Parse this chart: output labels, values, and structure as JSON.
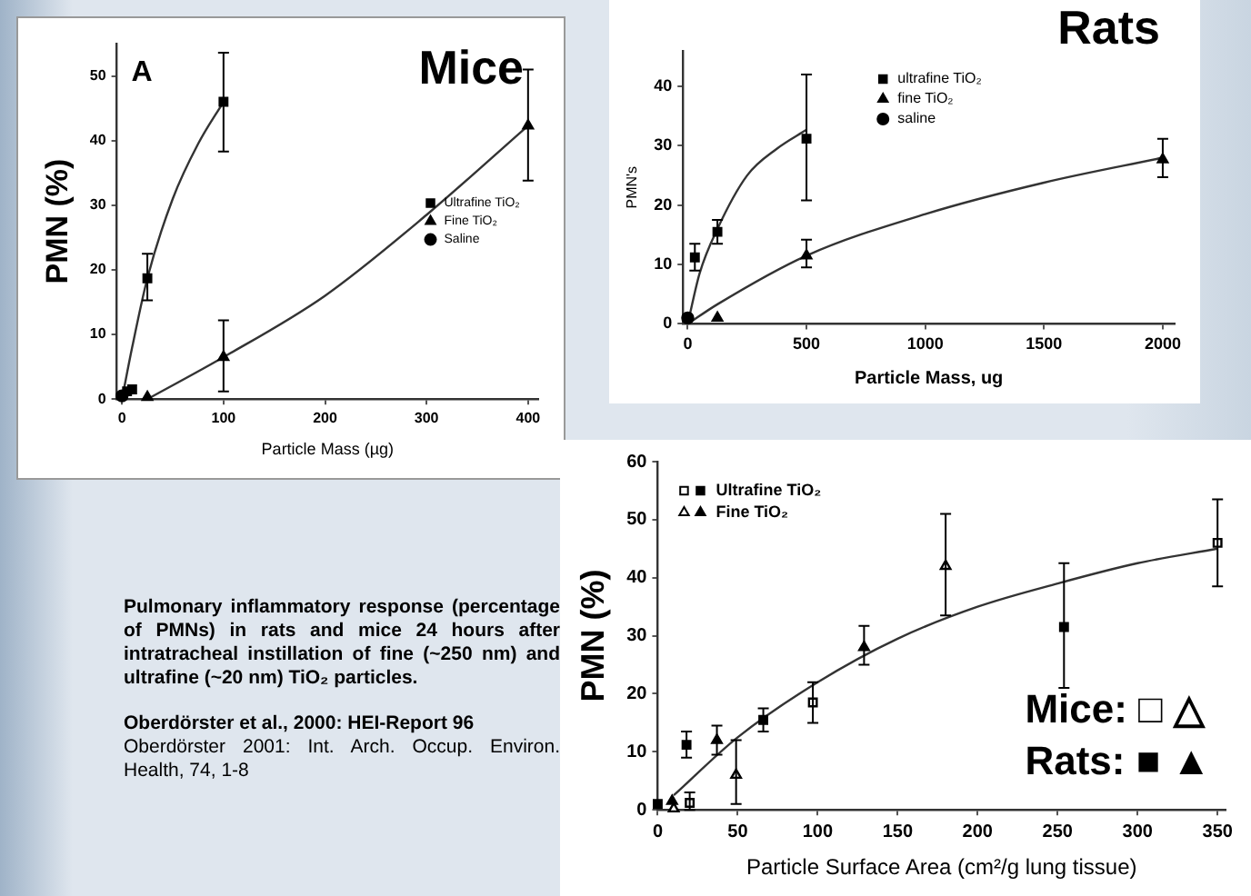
{
  "chart_data": [
    {
      "type": "scatter",
      "title": "Mice",
      "xlabel": "Particle Mass (µg)",
      "ylabel": "PMN (%)",
      "annotations": [
        "A"
      ],
      "xlim": [
        -5,
        410
      ],
      "ylim": [
        0,
        55
      ],
      "xticks": [
        0,
        100,
        200,
        300,
        400
      ],
      "yticks": [
        0,
        10,
        20,
        30,
        40,
        50
      ],
      "grid": false,
      "legend": "right",
      "series": [
        {
          "name": "Ultrafine TiO₂",
          "color": "#000000",
          "marker": "square",
          "x": [
            5,
            10,
            25,
            100
          ],
          "values": [
            1.2,
            1.5,
            18.7,
            46
          ],
          "errors": [
            null,
            null,
            [
              15.3,
              22.5
            ],
            [
              38.3,
              53.6
            ]
          ]
        },
        {
          "name": "Fine TiO₂",
          "color": "#000000",
          "marker": "triangle",
          "x": [
            25,
            100,
            400
          ],
          "values": [
            0.3,
            6.5,
            42.3
          ],
          "errors": [
            null,
            [
              1.2,
              12.2
            ],
            [
              33.8,
              51
            ]
          ]
        },
        {
          "name": "Saline",
          "color": "#000000",
          "marker": "circle",
          "x": [
            0
          ],
          "values": [
            0.5
          ]
        },
        {
          "type": "line",
          "color": "#333333",
          "marker": "none",
          "x": [
            0,
            10,
            25,
            50,
            75,
            100
          ],
          "values": [
            0,
            8,
            18.7,
            31,
            39.5,
            46
          ]
        },
        {
          "type": "line",
          "color": "#333333",
          "marker": "none",
          "x": [
            25,
            100,
            200,
            300,
            400
          ],
          "values": [
            0,
            6.5,
            16,
            28.5,
            42.3
          ]
        }
      ]
    },
    {
      "type": "scatter",
      "title": "Rats",
      "xlabel": "Particle Mass, ug",
      "ylabel": "PMN's",
      "xlim": [
        -20,
        2050
      ],
      "ylim": [
        0,
        46
      ],
      "xticks": [
        0,
        500,
        1000,
        1500,
        2000
      ],
      "yticks": [
        0,
        10,
        20,
        30,
        40
      ],
      "grid": false,
      "legend": "top",
      "series": [
        {
          "name": "ultrafine TiO₂",
          "color": "#000000",
          "marker": "square",
          "x": [
            30,
            125,
            500
          ],
          "values": [
            11.2,
            15.5,
            31.2
          ],
          "errors": [
            [
              9,
              13.5
            ],
            [
              13.5,
              17.5
            ],
            [
              20.8,
              42
            ]
          ]
        },
        {
          "name": "fine TiO₂",
          "color": "#000000",
          "marker": "triangle",
          "x": [
            125,
            500,
            2000
          ],
          "values": [
            1,
            11.5,
            27.7
          ],
          "errors": [
            null,
            [
              9.5,
              14.2
            ],
            [
              24.7,
              31.2
            ]
          ]
        },
        {
          "name": "saline",
          "color": "#000000",
          "marker": "circle",
          "x": [
            0
          ],
          "values": [
            1
          ]
        },
        {
          "type": "line",
          "color": "#333333",
          "marker": "none",
          "x": [
            0,
            50,
            125,
            250,
            375,
            500
          ],
          "values": [
            0,
            8.5,
            16,
            25,
            29.5,
            32.7
          ]
        },
        {
          "type": "line",
          "color": "#333333",
          "marker": "none",
          "x": [
            0,
            125,
            500,
            1000,
            1500,
            2000
          ],
          "values": [
            0,
            3.3,
            11.5,
            18.5,
            23.8,
            28
          ]
        }
      ]
    },
    {
      "type": "scatter",
      "xlabel": "Particle Surface Area (cm²/g lung tissue)",
      "ylabel": "PMN (%)",
      "annotations": [
        "Mice: □ △",
        "Rats: ■ ▲"
      ],
      "xlim": [
        0,
        355
      ],
      "ylim": [
        0,
        60
      ],
      "xticks": [
        0,
        50,
        100,
        150,
        200,
        250,
        300,
        350
      ],
      "yticks": [
        0,
        10,
        20,
        30,
        40,
        50,
        60
      ],
      "grid": false,
      "legend": "top left",
      "series": [
        {
          "name": "Ultrafine TiO₂",
          "color": "#000000",
          "marker": "square",
          "x": [
            0,
            18,
            66,
            254
          ],
          "values": [
            1,
            11.2,
            15.5,
            31.5
          ],
          "errors": [
            null,
            [
              9,
              13.5
            ],
            [
              13.5,
              17.5
            ],
            [
              21,
              42.5
            ]
          ]
        },
        {
          "name": "Ultrafine TiO₂",
          "color": "#ffffff",
          "marker": "square",
          "x": [
            20,
            97,
            350
          ],
          "values": [
            1.2,
            18.5,
            46
          ],
          "errors": [
            [
              0,
              3
            ],
            [
              15,
              22
            ],
            [
              38.5,
              53.5
            ]
          ]
        },
        {
          "name": "Fine TiO₂",
          "color": "#000000",
          "marker": "triangle",
          "x": [
            9,
            37,
            129
          ],
          "values": [
            1.5,
            12,
            28
          ],
          "errors": [
            null,
            [
              9.5,
              14.5
            ],
            [
              25,
              31.7
            ]
          ]
        },
        {
          "name": "Fine TiO₂",
          "color": "#ffffff",
          "marker": "triangle",
          "x": [
            10,
            49,
            180
          ],
          "values": [
            0.2,
            6,
            42
          ],
          "errors": [
            null,
            [
              1,
              12
            ],
            [
              33.5,
              51
            ]
          ]
        },
        {
          "type": "line",
          "color": "#333333",
          "marker": "none",
          "x": [
            10,
            50,
            100,
            150,
            200,
            250,
            300,
            350
          ],
          "values": [
            2.5,
            12.5,
            22,
            29.5,
            35,
            39,
            42.5,
            45
          ]
        }
      ]
    },
    {
      "type": "other",
      "annotations": [
        "Pulmonary inflammatory response (percentage of PMNs) in rats and mice 24 hours after intratracheal instillation of fine (~250 nm) and ultrafine (~20 nm) TiO₂ particles.",
        "Oberdörster et al., 2000: HEI-Report 96",
        "Oberdörster 2001: Int. Arch. Occup. Environ. Health, 74, 1-8"
      ]
    }
  ]
}
